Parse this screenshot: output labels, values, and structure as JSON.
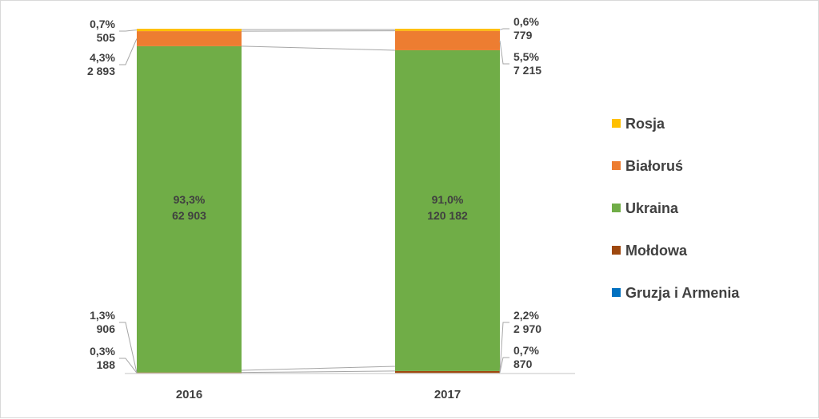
{
  "chart_data": {
    "type": "bar",
    "stacked": "percent",
    "categories": [
      "2016",
      "2017"
    ],
    "series": [
      {
        "name": "Gruzja i Armenia",
        "color": "#0070C0",
        "percent": [
          "",
          ""
        ],
        "values": [
          null,
          null
        ]
      },
      {
        "name": "Mołdowa",
        "color": "#9E480E",
        "percent": [
          "0,3%",
          "0,7%"
        ],
        "values": [
          "188",
          "870"
        ]
      },
      {
        "name": "Ukraina",
        "color": "#70AD47",
        "percent": [
          "93,3%",
          "91,0%"
        ],
        "values": [
          "62 903",
          "120 182"
        ]
      },
      {
        "name": "Białoruś",
        "color": "#ED7D31",
        "percent": [
          "4,3%",
          "5,5%"
        ],
        "values": [
          "2 893",
          "7 215"
        ]
      },
      {
        "name": "Rosja",
        "color": "#FFC000",
        "percent": [
          "0,7%",
          "0,6%"
        ],
        "values": [
          "505",
          "779"
        ]
      }
    ],
    "extra_labels": [
      {
        "category": "2016",
        "percent": "1,3%",
        "value": "906"
      },
      {
        "category": "2017",
        "percent": "2,2%",
        "value": "2 970"
      }
    ],
    "legend": "right",
    "grid": false
  }
}
